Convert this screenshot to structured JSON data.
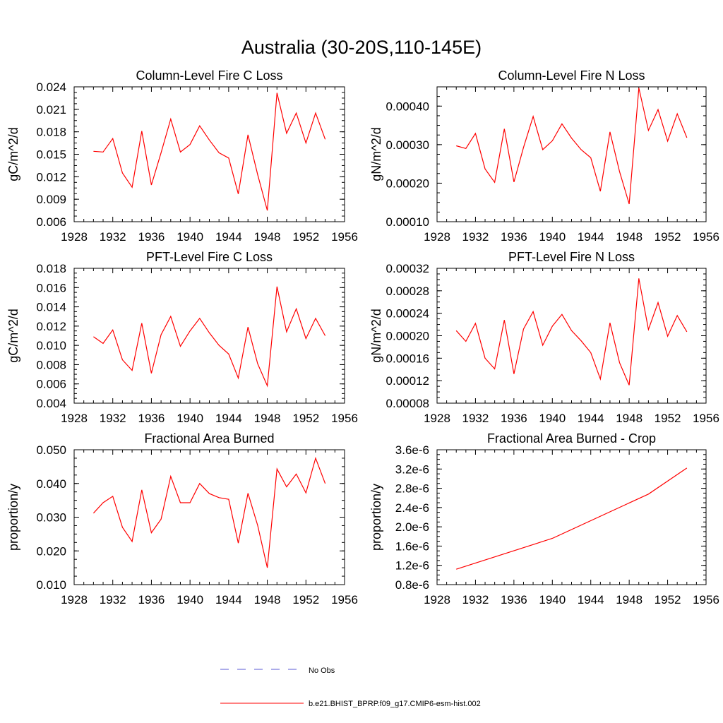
{
  "main_title": "Australia (30-20S,110-145E)",
  "colors": {
    "model_line": "#ff0000",
    "obs_line": "#5a5ad6",
    "axis": "#000000"
  },
  "legend": {
    "obs_label": "No Obs",
    "model_label": "b.e21.BHIST_BPRP.f09_g17.CMIP6-esm-hist.002"
  },
  "chart_data": [
    {
      "type": "line",
      "title": "Column-Level Fire C Loss",
      "ylabel": "gC/m^2/d",
      "xlabel": "",
      "xlim": [
        1928,
        1956
      ],
      "xticks": [
        1928,
        1932,
        1936,
        1940,
        1944,
        1948,
        1952,
        1956
      ],
      "xtick_labels": [
        "1928",
        "1932",
        "1936",
        "1940",
        "1944",
        "1948",
        "1952",
        "1956"
      ],
      "ylim": [
        0.006,
        0.024
      ],
      "yticks": [
        0.006,
        0.009,
        0.012,
        0.015,
        0.018,
        0.021,
        0.024
      ],
      "ytick_labels": [
        "0.006",
        "0.009",
        "0.012",
        "0.015",
        "0.018",
        "0.021",
        "0.024"
      ],
      "series": [
        {
          "name": "b.e21.BHIST_BPRP.f09_g17.CMIP6-esm-hist.002",
          "x": [
            1930,
            1931,
            1932,
            1933,
            1934,
            1935,
            1936,
            1937,
            1938,
            1939,
            1940,
            1941,
            1942,
            1943,
            1944,
            1945,
            1946,
            1947,
            1948,
            1949,
            1950,
            1951,
            1952,
            1953,
            1954
          ],
          "y": [
            0.0154,
            0.0153,
            0.0171,
            0.0125,
            0.0106,
            0.0181,
            0.0109,
            0.0152,
            0.0197,
            0.0153,
            0.0163,
            0.0188,
            0.0169,
            0.0152,
            0.0145,
            0.0097,
            0.0176,
            0.0123,
            0.0075,
            0.0232,
            0.0178,
            0.0205,
            0.0165,
            0.0205,
            0.017
          ]
        }
      ]
    },
    {
      "type": "line",
      "title": "Column-Level Fire N Loss",
      "ylabel": "gN/m^2/d",
      "xlabel": "",
      "xlim": [
        1928,
        1956
      ],
      "xticks": [
        1928,
        1932,
        1936,
        1940,
        1944,
        1948,
        1952,
        1956
      ],
      "xtick_labels": [
        "1928",
        "1932",
        "1936",
        "1940",
        "1944",
        "1948",
        "1952",
        "1956"
      ],
      "ylim": [
        0.0001,
        0.00045
      ],
      "yticks": [
        0.0001,
        0.0002,
        0.0003,
        0.0004
      ],
      "ytick_labels": [
        "0.00010",
        "0.00020",
        "0.00030",
        "0.00040"
      ],
      "series": [
        {
          "name": "b.e21.BHIST_BPRP.f09_g17.CMIP6-esm-hist.002",
          "x": [
            1930,
            1931,
            1932,
            1933,
            1934,
            1935,
            1936,
            1937,
            1938,
            1939,
            1940,
            1941,
            1942,
            1943,
            1944,
            1945,
            1946,
            1947,
            1948,
            1949,
            1950,
            1951,
            1952,
            1953,
            1954
          ],
          "y": [
            0.000297,
            0.00029,
            0.000329,
            0.000237,
            0.000202,
            0.000341,
            0.000203,
            0.000293,
            0.000373,
            0.000287,
            0.00031,
            0.000354,
            0.000317,
            0.000287,
            0.000266,
            0.000179,
            0.000333,
            0.00023,
            0.000146,
            0.000447,
            0.000337,
            0.000391,
            0.000309,
            0.00038,
            0.000318
          ]
        }
      ]
    },
    {
      "type": "line",
      "title": "PFT-Level Fire C Loss",
      "ylabel": "gC/m^2/d",
      "xlabel": "",
      "xlim": [
        1928,
        1956
      ],
      "xticks": [
        1928,
        1932,
        1936,
        1940,
        1944,
        1948,
        1952,
        1956
      ],
      "xtick_labels": [
        "1928",
        "1932",
        "1936",
        "1940",
        "1944",
        "1948",
        "1952",
        "1956"
      ],
      "ylim": [
        0.004,
        0.018
      ],
      "yticks": [
        0.004,
        0.006,
        0.008,
        0.01,
        0.012,
        0.014,
        0.016,
        0.018
      ],
      "ytick_labels": [
        "0.004",
        "0.006",
        "0.008",
        "0.010",
        "0.012",
        "0.014",
        "0.016",
        "0.018"
      ],
      "series": [
        {
          "name": "b.e21.BHIST_BPRP.f09_g17.CMIP6-esm-hist.002",
          "x": [
            1930,
            1931,
            1932,
            1933,
            1934,
            1935,
            1936,
            1937,
            1938,
            1939,
            1940,
            1941,
            1942,
            1943,
            1944,
            1945,
            1946,
            1947,
            1948,
            1949,
            1950,
            1951,
            1952,
            1953,
            1954
          ],
          "y": [
            0.0109,
            0.0102,
            0.0116,
            0.0085,
            0.0074,
            0.0123,
            0.0071,
            0.0111,
            0.013,
            0.0099,
            0.0115,
            0.0128,
            0.0113,
            0.01,
            0.0091,
            0.0066,
            0.0119,
            0.0081,
            0.0058,
            0.0161,
            0.0114,
            0.0138,
            0.0107,
            0.0128,
            0.011
          ]
        }
      ]
    },
    {
      "type": "line",
      "title": "PFT-Level Fire N Loss",
      "ylabel": "gN/m^2/d",
      "xlabel": "",
      "xlim": [
        1928,
        1956
      ],
      "xticks": [
        1928,
        1932,
        1936,
        1940,
        1944,
        1948,
        1952,
        1956
      ],
      "xtick_labels": [
        "1928",
        "1932",
        "1936",
        "1940",
        "1944",
        "1948",
        "1952",
        "1956"
      ],
      "ylim": [
        8e-05,
        0.00032
      ],
      "yticks": [
        8e-05,
        0.00012,
        0.00016,
        0.0002,
        0.00024,
        0.00028,
        0.00032
      ],
      "ytick_labels": [
        "0.00008",
        "0.00012",
        "0.00016",
        "0.00020",
        "0.00024",
        "0.00028",
        "0.00032"
      ],
      "series": [
        {
          "name": "b.e21.BHIST_BPRP.f09_g17.CMIP6-esm-hist.002",
          "x": [
            1930,
            1931,
            1932,
            1933,
            1934,
            1935,
            1936,
            1937,
            1938,
            1939,
            1940,
            1941,
            1942,
            1943,
            1944,
            1945,
            1946,
            1947,
            1948,
            1949,
            1950,
            1951,
            1952,
            1953,
            1954
          ],
          "y": [
            0.000209,
            0.00019,
            0.000222,
            0.00016,
            0.000141,
            0.000228,
            0.000132,
            0.000212,
            0.000243,
            0.000183,
            0.000217,
            0.000238,
            0.000209,
            0.000191,
            0.00017,
            0.000123,
            0.000223,
            0.000152,
            0.000112,
            0.000302,
            0.000211,
            0.000259,
            0.000199,
            0.000236,
            0.000207
          ]
        }
      ]
    },
    {
      "type": "line",
      "title": "Fractional Area Burned",
      "ylabel": "proportion/y",
      "xlabel": "",
      "xlim": [
        1928,
        1956
      ],
      "xticks": [
        1928,
        1932,
        1936,
        1940,
        1944,
        1948,
        1952,
        1956
      ],
      "xtick_labels": [
        "1928",
        "1932",
        "1936",
        "1940",
        "1944",
        "1948",
        "1952",
        "1956"
      ],
      "ylim": [
        0.01,
        0.05
      ],
      "yticks": [
        0.01,
        0.02,
        0.03,
        0.04,
        0.05
      ],
      "ytick_labels": [
        "0.010",
        "0.020",
        "0.030",
        "0.040",
        "0.050"
      ],
      "series": [
        {
          "name": "b.e21.BHIST_BPRP.f09_g17.CMIP6-esm-hist.002",
          "x": [
            1930,
            1931,
            1932,
            1933,
            1934,
            1935,
            1936,
            1937,
            1938,
            1939,
            1940,
            1941,
            1942,
            1943,
            1944,
            1945,
            1946,
            1947,
            1948,
            1949,
            1950,
            1951,
            1952,
            1953,
            1954
          ],
          "y": [
            0.0312,
            0.0343,
            0.0362,
            0.027,
            0.0228,
            0.0381,
            0.0254,
            0.0294,
            0.0421,
            0.0343,
            0.0343,
            0.04,
            0.037,
            0.0358,
            0.0353,
            0.0223,
            0.0371,
            0.0276,
            0.015,
            0.0443,
            0.039,
            0.0428,
            0.0372,
            0.0475,
            0.04
          ]
        }
      ]
    },
    {
      "type": "line",
      "title": "Fractional Area Burned - Crop",
      "ylabel": "proportion/y",
      "xlabel": "",
      "xlim": [
        1928,
        1956
      ],
      "xticks": [
        1928,
        1932,
        1936,
        1940,
        1944,
        1948,
        1952,
        1956
      ],
      "xtick_labels": [
        "1928",
        "1932",
        "1936",
        "1940",
        "1944",
        "1948",
        "1952",
        "1956"
      ],
      "ylim": [
        8e-07,
        3.6e-06
      ],
      "yticks": [
        8e-07,
        1.2e-06,
        1.6e-06,
        2e-06,
        2.4e-06,
        2.8e-06,
        3.2e-06,
        3.6e-06
      ],
      "ytick_labels": [
        "0.8e-6",
        "1.2e-6",
        "1.6e-6",
        "2.0e-6",
        "2.4e-6",
        "2.8e-6",
        "3.2e-6",
        "3.6e-6"
      ],
      "series": [
        {
          "name": "b.e21.BHIST_BPRP.f09_g17.CMIP6-esm-hist.002",
          "x": [
            1930,
            1940,
            1950,
            1954
          ],
          "y": [
            1.12e-06,
            1.76e-06,
            2.68e-06,
            3.22e-06
          ]
        }
      ]
    }
  ]
}
